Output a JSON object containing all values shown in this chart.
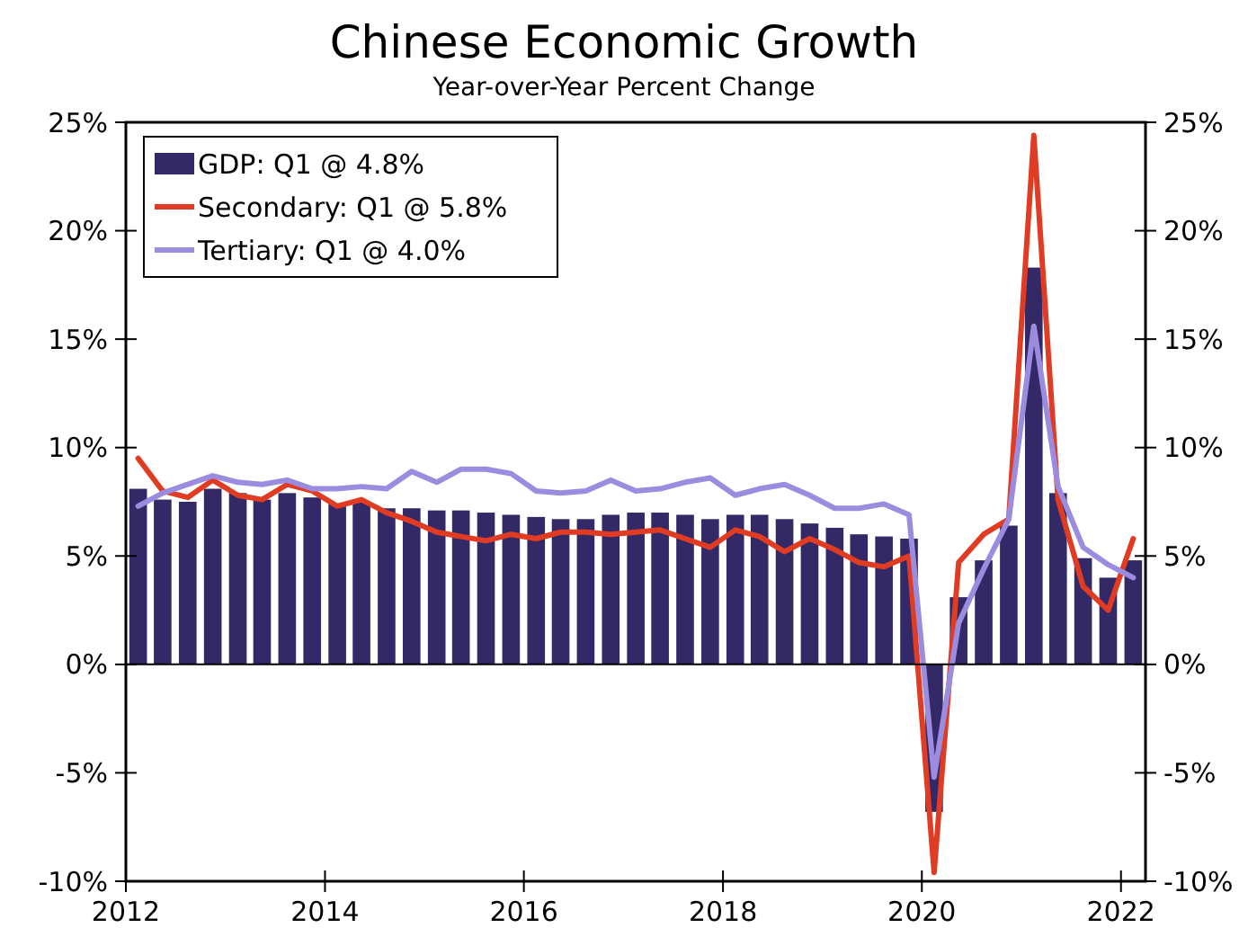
{
  "chart_data": {
    "type": "bar",
    "title": "Chinese Economic Growth",
    "subtitle": "Year-over-Year Percent Change",
    "x": [
      "2012-02-15",
      "2012-05-15",
      "2012-08-15",
      "2012-11-15",
      "2013-02-15",
      "2013-05-15",
      "2013-08-15",
      "2013-11-15",
      "2014-02-15",
      "2014-05-15",
      "2014-08-15",
      "2014-11-15",
      "2015-02-15",
      "2015-05-15",
      "2015-08-15",
      "2015-11-15",
      "2016-02-15",
      "2016-05-15",
      "2016-08-15",
      "2016-11-15",
      "2017-02-15",
      "2017-05-15",
      "2017-08-15",
      "2017-11-15",
      "2018-02-15",
      "2018-05-15",
      "2018-08-15",
      "2018-11-15",
      "2019-02-15",
      "2019-05-15",
      "2019-08-15",
      "2019-11-15",
      "2020-02-15",
      "2020-05-15",
      "2020-08-15",
      "2020-11-15",
      "2021-02-15",
      "2021-05-15",
      "2021-08-15",
      "2021-11-15",
      "2022-02-15"
    ],
    "xlim": [
      "2012-01-01",
      "2022-04-01"
    ],
    "xticks": [
      {
        "value": "2012",
        "label": "2012"
      },
      {
        "value": "2014",
        "label": "2014"
      },
      {
        "value": "2016",
        "label": "2016"
      },
      {
        "value": "2018",
        "label": "2018"
      },
      {
        "value": "2020",
        "label": "2020"
      },
      {
        "value": "2022",
        "label": "2022"
      }
    ],
    "ylim": [
      -10,
      25
    ],
    "yticks": [
      {
        "value": -10,
        "label": "-10%"
      },
      {
        "value": -5,
        "label": "-5%"
      },
      {
        "value": 0,
        "label": "0%"
      },
      {
        "value": 5,
        "label": "5%"
      },
      {
        "value": 10,
        "label": "10%"
      },
      {
        "value": 15,
        "label": "15%"
      },
      {
        "value": 20,
        "label": "20%"
      },
      {
        "value": 25,
        "label": "25%"
      }
    ],
    "y2lim": [
      -10,
      25
    ],
    "y2ticks": [
      {
        "value": -10,
        "label": "-10%"
      },
      {
        "value": -5,
        "label": "-5%"
      },
      {
        "value": 0,
        "label": "0%"
      },
      {
        "value": 5,
        "label": "5%"
      },
      {
        "value": 10,
        "label": "10%"
      },
      {
        "value": 15,
        "label": "15%"
      },
      {
        "value": 20,
        "label": "20%"
      },
      {
        "value": 25,
        "label": "25%"
      }
    ],
    "legend": "top left",
    "series": [
      {
        "name": "GDP: Q1 @ 4.8%",
        "color": "#332966",
        "values": [
          8.1,
          7.6,
          7.5,
          8.1,
          7.9,
          7.6,
          7.9,
          7.7,
          7.4,
          7.5,
          7.2,
          7.2,
          7.1,
          7.1,
          7.0,
          6.9,
          6.8,
          6.7,
          6.7,
          6.9,
          7.0,
          7.0,
          6.9,
          6.7,
          6.9,
          6.9,
          6.7,
          6.5,
          6.3,
          6.0,
          5.9,
          5.8,
          -6.8,
          3.1,
          4.8,
          6.4,
          18.3,
          7.9,
          4.9,
          4.0,
          4.8
        ]
      },
      {
        "name": "Secondary: Q1 @ 5.8%",
        "type": "line",
        "color": "#e03c24",
        "values": [
          9.5,
          8.0,
          7.7,
          8.5,
          7.8,
          7.6,
          8.3,
          8.0,
          7.3,
          7.6,
          7.0,
          6.6,
          6.1,
          5.9,
          5.7,
          6.0,
          5.8,
          6.1,
          6.1,
          6.0,
          6.1,
          6.2,
          5.8,
          5.4,
          6.2,
          5.9,
          5.2,
          5.8,
          5.3,
          4.7,
          4.5,
          5.0,
          -9.6,
          4.7,
          6.0,
          6.7,
          24.4,
          7.6,
          3.6,
          2.5,
          5.8
        ]
      },
      {
        "name": "Tertiary: Q1 @ 4.0%",
        "type": "line",
        "color": "#9b8ce0",
        "values": [
          7.3,
          7.9,
          8.3,
          8.7,
          8.4,
          8.3,
          8.5,
          8.1,
          8.1,
          8.2,
          8.1,
          8.9,
          8.4,
          9.0,
          9.0,
          8.8,
          8.0,
          7.9,
          8.0,
          8.5,
          8.0,
          8.1,
          8.4,
          8.6,
          7.8,
          8.1,
          8.3,
          7.8,
          7.2,
          7.2,
          7.4,
          6.9,
          -5.2,
          1.9,
          4.4,
          6.7,
          15.6,
          8.2,
          5.4,
          4.6,
          4.0
        ]
      }
    ]
  }
}
